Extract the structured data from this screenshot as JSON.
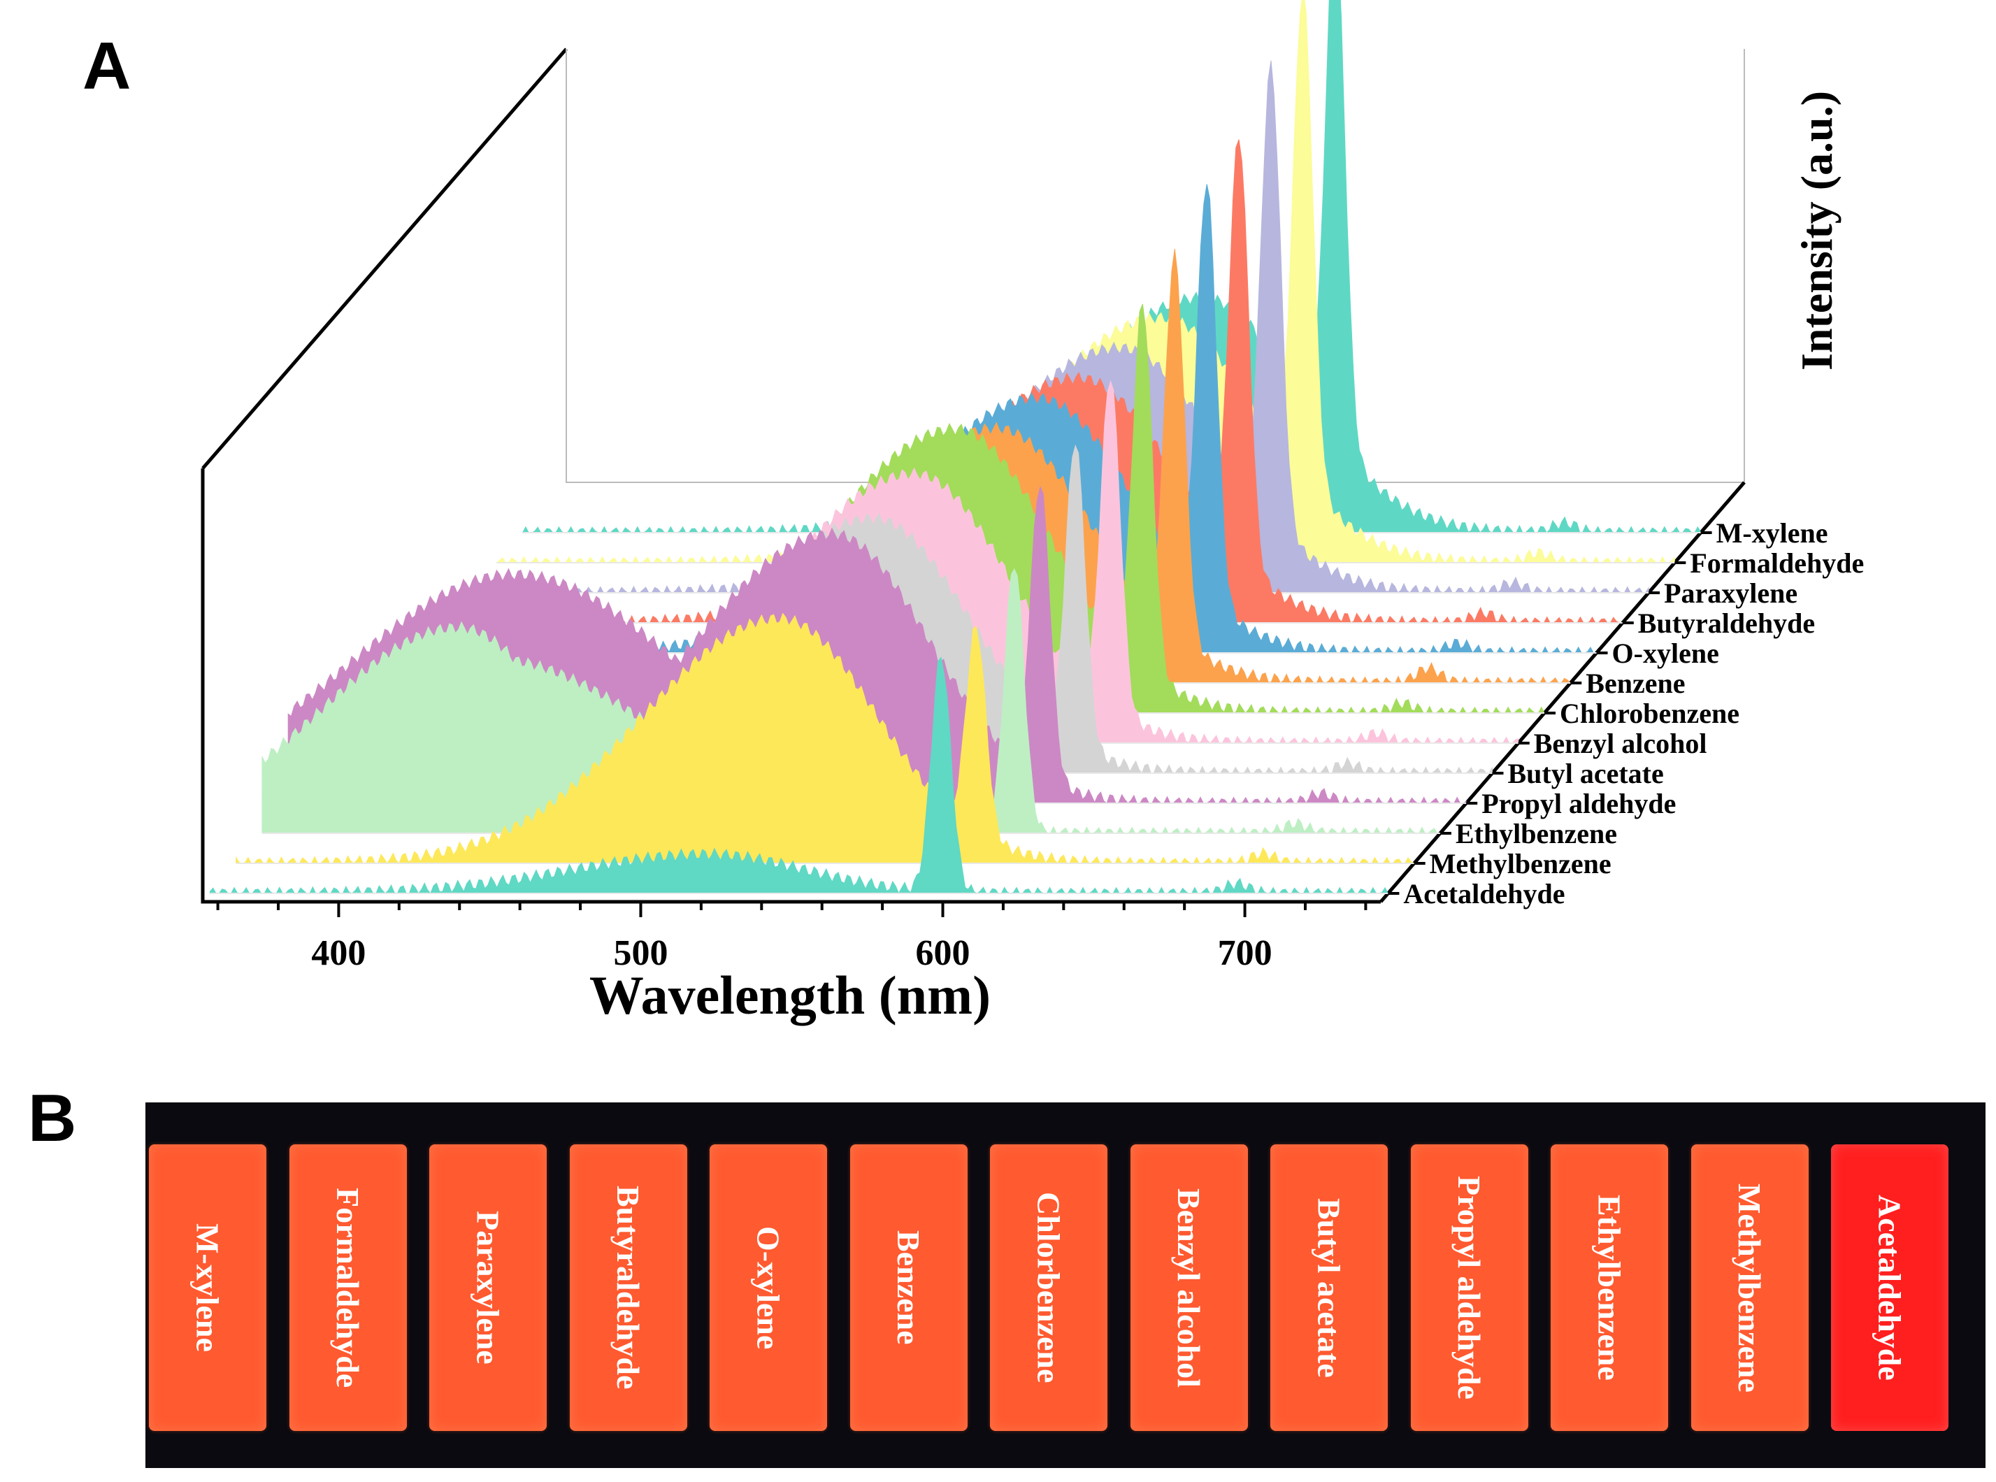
{
  "panel_labels": {
    "a": "A",
    "b": "B"
  },
  "chart_data": {
    "type": "line",
    "style": "3D waterfall of fluorescence emission spectra",
    "xlabel": "Wavelength (nm)",
    "ylabel": "Intensity (a.u.)",
    "xlim": [
      355,
      745
    ],
    "xticks": [
      400,
      500,
      600,
      700
    ],
    "series": [
      {
        "name": "Acetaldehyde",
        "color": "#5fd8c4",
        "broad_peak_nm": 520,
        "broad_rel": 0.08,
        "main_peak_nm": 597,
        "main_rel": 0.48,
        "secondary_peak_nm": 695,
        "secondary_rel": 0.02
      },
      {
        "name": "Methylbenzene",
        "color": "#fde859",
        "broad_peak_nm": 535,
        "broad_rel": 0.5,
        "main_peak_nm": 600,
        "main_rel": 0.42,
        "secondary_peak_nm": 695,
        "secondary_rel": 0.02
      },
      {
        "name": "Ethylbenzene",
        "color": "#bdefc3",
        "broad_peak_nm": 420,
        "broad_rel": 0.42,
        "main_peak_nm": 604,
        "main_rel": 0.55,
        "secondary_peak_nm": 697,
        "secondary_rel": 0.02
      },
      {
        "name": "Propyl aldehyde",
        "color": "#cc88c4",
        "broad_peak_nm": 535,
        "broad_rel": 0.55,
        "main_peak_nm": 604,
        "main_rel": 0.6,
        "secondary_peak_nm": 697,
        "secondary_rel": 0.02
      },
      {
        "name": "Butyl acetate",
        "color": "#d4d4d4",
        "broad_peak_nm": 540,
        "broad_rel": 0.52,
        "main_peak_nm": 607,
        "main_rel": 0.62,
        "secondary_peak_nm": 697,
        "secondary_rel": 0.02
      },
      {
        "name": "Benzyl alcohol",
        "color": "#fcc4dc",
        "broad_peak_nm": 545,
        "broad_rel": 0.55,
        "main_peak_nm": 610,
        "main_rel": 0.68,
        "secondary_peak_nm": 698,
        "secondary_rel": 0.02
      },
      {
        "name": "Chlorobenzene",
        "color": "#a2dc5a",
        "broad_peak_nm": 550,
        "broad_rel": 0.58,
        "main_peak_nm": 612,
        "main_rel": 0.75,
        "secondary_peak_nm": 698,
        "secondary_rel": 0.02
      },
      {
        "name": "Benzene",
        "color": "#fca24c",
        "broad_peak_nm": 555,
        "broad_rel": 0.52,
        "main_peak_nm": 614,
        "main_rel": 0.78,
        "secondary_peak_nm": 698,
        "secondary_rel": 0.03
      },
      {
        "name": "O-xylene",
        "color": "#5aacd6",
        "broad_peak_nm": 560,
        "broad_rel": 0.52,
        "main_peak_nm": 616,
        "main_rel": 0.85,
        "secondary_peak_nm": 699,
        "secondary_rel": 0.02
      },
      {
        "name": "Butyraldehyde",
        "color": "#fc7a64",
        "broad_peak_nm": 565,
        "broad_rel": 0.5,
        "main_peak_nm": 618,
        "main_rel": 0.87,
        "secondary_peak_nm": 699,
        "secondary_rel": 0.02
      },
      {
        "name": "Paraxylene",
        "color": "#b6b6de",
        "broad_peak_nm": 570,
        "broad_rel": 0.5,
        "main_peak_nm": 620,
        "main_rel": 0.93,
        "secondary_peak_nm": 700,
        "secondary_rel": 0.02
      },
      {
        "name": "Formaldehyde",
        "color": "#fcfc98",
        "broad_peak_nm": 575,
        "broad_rel": 0.5,
        "main_peak_nm": 622,
        "main_rel": 1.0,
        "secondary_peak_nm": 700,
        "secondary_rel": 0.02
      },
      {
        "name": "M-xylene",
        "color": "#5ed8c4",
        "broad_peak_nm": 580,
        "broad_rel": 0.48,
        "main_peak_nm": 624,
        "main_rel": 1.06,
        "secondary_peak_nm": 700,
        "secondary_rel": 0.02
      }
    ],
    "legend_placement": "right-depth-axis"
  },
  "photo": {
    "background": "#0a0a10",
    "slides": [
      "M-xylene",
      "Formaldehyde",
      "Paraxylene",
      "Butyraldehyde",
      "O-xylene",
      "Benzene",
      "Chlorbenzene",
      "Benzyl alcohol",
      "Butyl acetate",
      "Propyl aldehyde",
      "Ethylbenzene",
      "Methylbenzene",
      "Acetaldehyde"
    ]
  }
}
